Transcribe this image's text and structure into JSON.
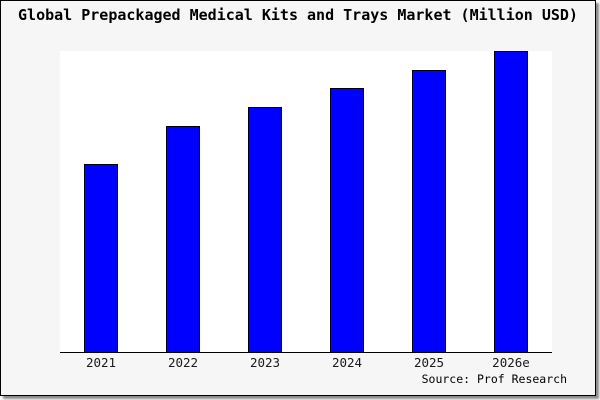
{
  "window": {
    "background_color": "#f6f6f6",
    "border_color": "#000000"
  },
  "chart_data": {
    "type": "bar",
    "title": "Global Prepackaged Medical Kits and Trays Market (Million USD)",
    "categories": [
      "2021",
      "2022",
      "2023",
      "2024",
      "2025",
      "2026e"
    ],
    "values": [
      62.5,
      75.1,
      81.4,
      87.7,
      93.7,
      100
    ],
    "values_note": "Y-axis is unlabeled in the chart; values are relative bar heights with 2026e = 100",
    "xlabel": "",
    "ylabel": "",
    "ylim": [
      0,
      100
    ],
    "grid": false,
    "legend": false,
    "bar_color": "#0000ff",
    "bar_border_color": "#000000",
    "plot_background": "#ffffff",
    "axis_line_color": "#000000"
  },
  "footer": {
    "source_label": "Source: Prof Research"
  }
}
